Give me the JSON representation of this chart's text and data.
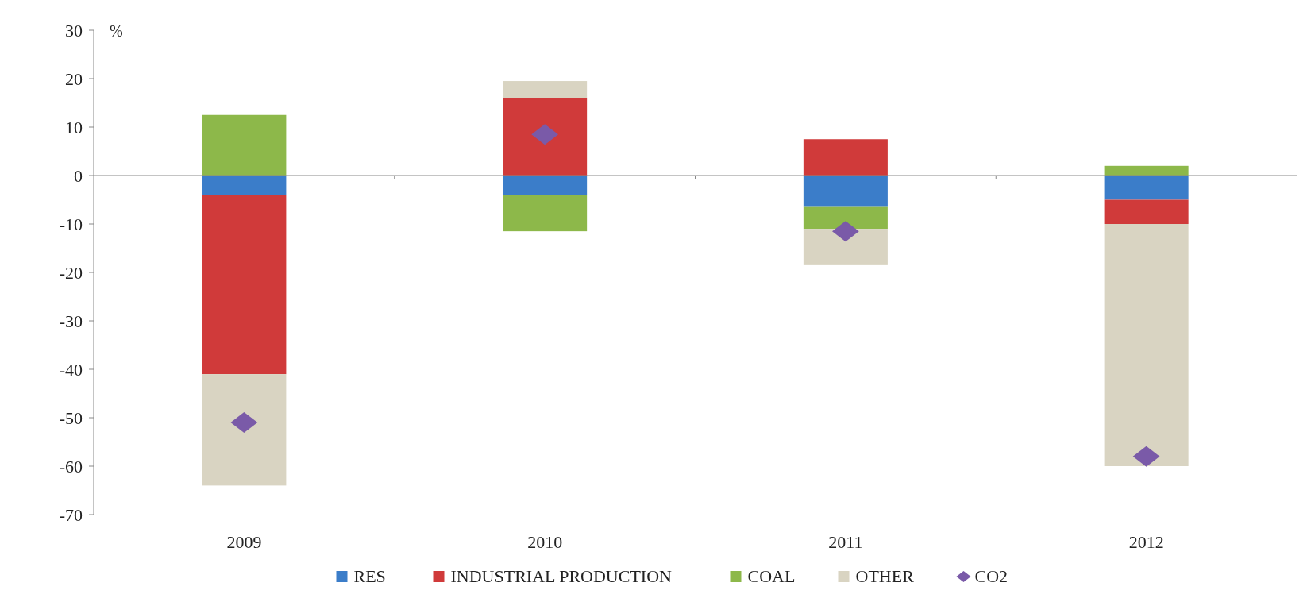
{
  "chart_data": {
    "type": "bar",
    "stacked": true,
    "ylabel": "%",
    "categories": [
      "2009",
      "2010",
      "2011",
      "2012"
    ],
    "series": [
      {
        "name": "RES",
        "color": "#3b7dc9",
        "values": [
          -4,
          -4,
          -6.5,
          -5
        ]
      },
      {
        "name": "INDUSTRIAL PRODUCTION",
        "color": "#d03a3a",
        "values": [
          -37,
          16,
          7.5,
          -5
        ]
      },
      {
        "name": "COAL",
        "color": "#8db84a",
        "values": [
          12.5,
          -7.5,
          -4.5,
          2
        ]
      },
      {
        "name": "OTHER",
        "color": "#d9d4c2",
        "values": [
          -23,
          3.5,
          -7.5,
          -50
        ]
      },
      {
        "name": "CO2",
        "type": "scatter",
        "marker": "diamond",
        "color": "#7a5aa8",
        "values": [
          -51,
          8.5,
          -11.5,
          -58
        ]
      }
    ],
    "ylim": [
      -70,
      30
    ],
    "yticks": [
      -70,
      -60,
      -50,
      -40,
      -30,
      -20,
      -10,
      0,
      10,
      20,
      30
    ],
    "legend": "bottom"
  }
}
